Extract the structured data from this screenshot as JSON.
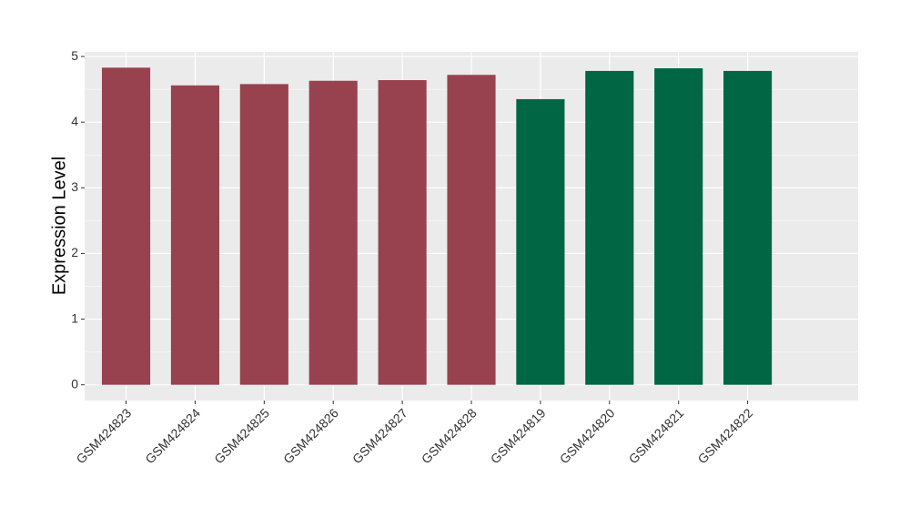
{
  "chart_data": {
    "type": "bar",
    "y_label": "Expression Level",
    "categories": [
      "GSM424823",
      "GSM424824",
      "GSM424825",
      "GSM424826",
      "GSM424827",
      "GSM424828",
      "GSM424819",
      "GSM424820",
      "GSM424821",
      "GSM424822"
    ],
    "values": [
      4.83,
      4.56,
      4.58,
      4.63,
      4.64,
      4.72,
      4.35,
      4.78,
      4.82,
      4.78
    ],
    "colors": [
      "#99424f",
      "#99424f",
      "#99424f",
      "#99424f",
      "#99424f",
      "#99424f",
      "#006644",
      "#006644",
      "#006644",
      "#006644"
    ],
    "ylim": [
      -0.24,
      5.07
    ],
    "yticks": [
      0,
      1,
      2,
      3,
      4,
      5
    ],
    "grid": true
  }
}
